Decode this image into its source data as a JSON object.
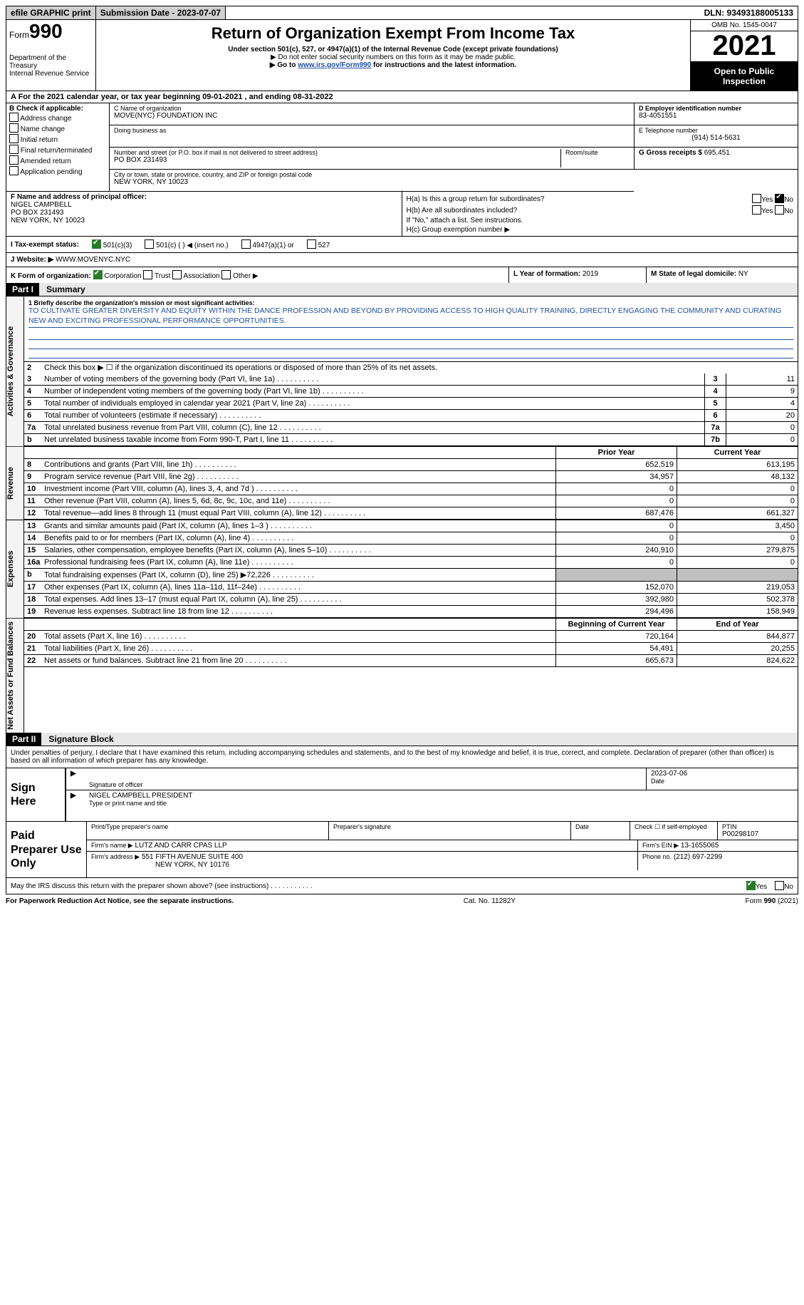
{
  "topbar": {
    "efile": "efile GRAPHIC print",
    "submission_label": "Submission Date - 2023-07-07",
    "dln_label": "DLN: 93493188005133"
  },
  "header": {
    "form_label": "Form",
    "form_no": "990",
    "dept": "Department of the Treasury",
    "irs": "Internal Revenue Service",
    "title": "Return of Organization Exempt From Income Tax",
    "sub": "Under section 501(c), 527, or 4947(a)(1) of the Internal Revenue Code (except private foundations)",
    "line2": "▶ Do not enter social security numbers on this form as it may be made public.",
    "line3_pre": "▶ Go to ",
    "line3_link": "www.irs.gov/Form990",
    "line3_post": " for instructions and the latest information.",
    "omb": "OMB No. 1545-0047",
    "year": "2021",
    "open": "Open to Public Inspection"
  },
  "section_a": "A  For the 2021 calendar year, or tax year beginning 09-01-2021    , and ending 08-31-2022",
  "box_b": {
    "title": "B Check if applicable:",
    "items": [
      "Address change",
      "Name change",
      "Initial return",
      "Final return/terminated",
      "Amended return",
      "Application pending"
    ]
  },
  "box_c": {
    "label": "C Name of organization",
    "name": "MOVE(NYC) FOUNDATION INC",
    "dba_label": "Doing business as",
    "addr_label": "Number and street (or P.O. box if mail is not delivered to street address)",
    "room_label": "Room/suite",
    "addr": "PO BOX 231493",
    "city_label": "City or town, state or province, country, and ZIP or foreign postal code",
    "city": "NEW YORK, NY  10023"
  },
  "box_d": {
    "label": "D Employer identification number",
    "val": "83-4051551"
  },
  "box_e": {
    "label": "E Telephone number",
    "val": "(914) 514-5631"
  },
  "box_g": {
    "label": "G Gross receipts $",
    "val": "695,451"
  },
  "box_f": {
    "label": "F Name and address of principal officer:",
    "name": "NIGEL CAMPBELL",
    "addr1": "PO BOX 231493",
    "addr2": "NEW YORK, NY  10023"
  },
  "box_h": {
    "ha": "H(a)  Is this a group return for subordinates?",
    "hb": "H(b)  Are all subordinates included?",
    "hb_note": "If \"No,\" attach a list. See instructions.",
    "hc": "H(c)  Group exemption number ▶"
  },
  "tax_status": {
    "label": "I  Tax-exempt status:",
    "o1": "501(c)(3)",
    "o2": "501(c) (   ) ◀ (insert no.)",
    "o3": "4947(a)(1) or",
    "o4": "527"
  },
  "box_j": {
    "label": "J  Website: ▶",
    "val": "WWW.MOVENYC.NYC"
  },
  "box_k": {
    "label": "K Form of organization:",
    "opts": [
      "Corporation",
      "Trust",
      "Association",
      "Other ▶"
    ]
  },
  "box_l": {
    "label": "L Year of formation:",
    "val": "2019"
  },
  "box_m": {
    "label": "M State of legal domicile:",
    "val": "NY"
  },
  "part1": {
    "label": "Part I",
    "title": "Summary"
  },
  "mission": {
    "prompt": "1   Briefly describe the organization's mission or most significant activities:",
    "text": "TO CULTIVATE GREATER DIVERSITY AND EQUITY WITHIN THE DANCE PROFESSION AND BEYOND BY PROVIDING ACCESS TO HIGH QUALITY TRAINING, DIRECTLY ENGAGING THE COMMUNITY AND CURATING NEW AND EXCITING PROFESSIONAL PERFORMANCE OPPORTUNITIES."
  },
  "gov_lines": {
    "l2": "Check this box ▶ ☐  if the organization discontinued its operations or disposed of more than 25% of its net assets.",
    "rows": [
      {
        "n": "3",
        "txt": "Number of voting members of the governing body (Part VI, line 1a)",
        "code": "3",
        "val": "11"
      },
      {
        "n": "4",
        "txt": "Number of independent voting members of the governing body (Part VI, line 1b)",
        "code": "4",
        "val": "9"
      },
      {
        "n": "5",
        "txt": "Total number of individuals employed in calendar year 2021 (Part V, line 2a)",
        "code": "5",
        "val": "4"
      },
      {
        "n": "6",
        "txt": "Total number of volunteers (estimate if necessary)",
        "code": "6",
        "val": "20"
      },
      {
        "n": "7a",
        "txt": "Total unrelated business revenue from Part VIII, column (C), line 12",
        "code": "7a",
        "val": "0"
      },
      {
        "n": "b",
        "txt": "Net unrelated business taxable income from Form 990-T, Part I, line 11",
        "code": "7b",
        "val": "0"
      }
    ]
  },
  "fin_headers": {
    "py": "Prior Year",
    "cy": "Current Year"
  },
  "revenue_rows": [
    {
      "n": "8",
      "txt": "Contributions and grants (Part VIII, line 1h)",
      "py": "652,519",
      "cy": "613,195"
    },
    {
      "n": "9",
      "txt": "Program service revenue (Part VIII, line 2g)",
      "py": "34,957",
      "cy": "48,132"
    },
    {
      "n": "10",
      "txt": "Investment income (Part VIII, column (A), lines 3, 4, and 7d )",
      "py": "0",
      "cy": "0"
    },
    {
      "n": "11",
      "txt": "Other revenue (Part VIII, column (A), lines 5, 6d, 8c, 9c, 10c, and 11e)",
      "py": "0",
      "cy": "0"
    },
    {
      "n": "12",
      "txt": "Total revenue—add lines 8 through 11 (must equal Part VIII, column (A), line 12)",
      "py": "687,476",
      "cy": "661,327"
    }
  ],
  "expense_rows": [
    {
      "n": "13",
      "txt": "Grants and similar amounts paid (Part IX, column (A), lines 1–3 )",
      "py": "0",
      "cy": "3,450"
    },
    {
      "n": "14",
      "txt": "Benefits paid to or for members (Part IX, column (A), line 4)",
      "py": "0",
      "cy": "0"
    },
    {
      "n": "15",
      "txt": "Salaries, other compensation, employee benefits (Part IX, column (A), lines 5–10)",
      "py": "240,910",
      "cy": "279,875"
    },
    {
      "n": "16a",
      "txt": "Professional fundraising fees (Part IX, column (A), line 11e)",
      "py": "0",
      "cy": "0"
    },
    {
      "n": "b",
      "txt": "Total fundraising expenses (Part IX, column (D), line 25) ▶72,226",
      "py": "shaded",
      "cy": "shaded"
    },
    {
      "n": "17",
      "txt": "Other expenses (Part IX, column (A), lines 11a–11d, 11f–24e)",
      "py": "152,070",
      "cy": "219,053"
    },
    {
      "n": "18",
      "txt": "Total expenses. Add lines 13–17 (must equal Part IX, column (A), line 25)",
      "py": "392,980",
      "cy": "502,378"
    },
    {
      "n": "19",
      "txt": "Revenue less expenses. Subtract line 18 from line 12",
      "py": "294,496",
      "cy": "158,949"
    }
  ],
  "net_headers": {
    "py": "Beginning of Current Year",
    "cy": "End of Year"
  },
  "net_rows": [
    {
      "n": "20",
      "txt": "Total assets (Part X, line 16)",
      "py": "720,164",
      "cy": "844,877"
    },
    {
      "n": "21",
      "txt": "Total liabilities (Part X, line 26)",
      "py": "54,491",
      "cy": "20,255"
    },
    {
      "n": "22",
      "txt": "Net assets or fund balances. Subtract line 21 from line 20",
      "py": "665,673",
      "cy": "824,622"
    }
  ],
  "part2": {
    "label": "Part II",
    "title": "Signature Block"
  },
  "sig": {
    "intro": "Under penalties of perjury, I declare that I have examined this return, including accompanying schedules and statements, and to the best of my knowledge and belief, it is true, correct, and complete. Declaration of preparer (other than officer) is based on all information of which preparer has any knowledge.",
    "sign_here": "Sign Here",
    "sig_label": "Signature of officer",
    "date_label": "Date",
    "date_val": "2023-07-06",
    "name": "NIGEL CAMPBELL  PRESIDENT",
    "name_label": "Type or print name and title"
  },
  "prep": {
    "title": "Paid Preparer Use Only",
    "col1": "Print/Type preparer's name",
    "col2": "Preparer's signature",
    "col3": "Date",
    "col4a": "Check ☐ if self-employed",
    "col4b_label": "PTIN",
    "col4b": "P00298107",
    "firm_label": "Firm's name    ▶",
    "firm": "LUTZ AND CARR CPAS LLP",
    "ein_label": "Firm's EIN ▶",
    "ein": "13-1655065",
    "addr_label": "Firm's address ▶",
    "addr1": "551 FIFTH AVENUE SUITE 400",
    "addr2": "NEW YORK, NY  10176",
    "phone_label": "Phone no.",
    "phone": "(212) 697-2299"
  },
  "discuss": {
    "txt": "May the IRS discuss this return with the preparer shown above? (see instructions)",
    "yes": "Yes",
    "no": "No"
  },
  "footer": {
    "left": "For Paperwork Reduction Act Notice, see the separate instructions.",
    "mid": "Cat. No. 11282Y",
    "right": "Form 990 (2021)"
  },
  "vtabs": {
    "gov": "Activities & Governance",
    "rev": "Revenue",
    "exp": "Expenses",
    "net": "Net Assets or Fund Balances"
  }
}
